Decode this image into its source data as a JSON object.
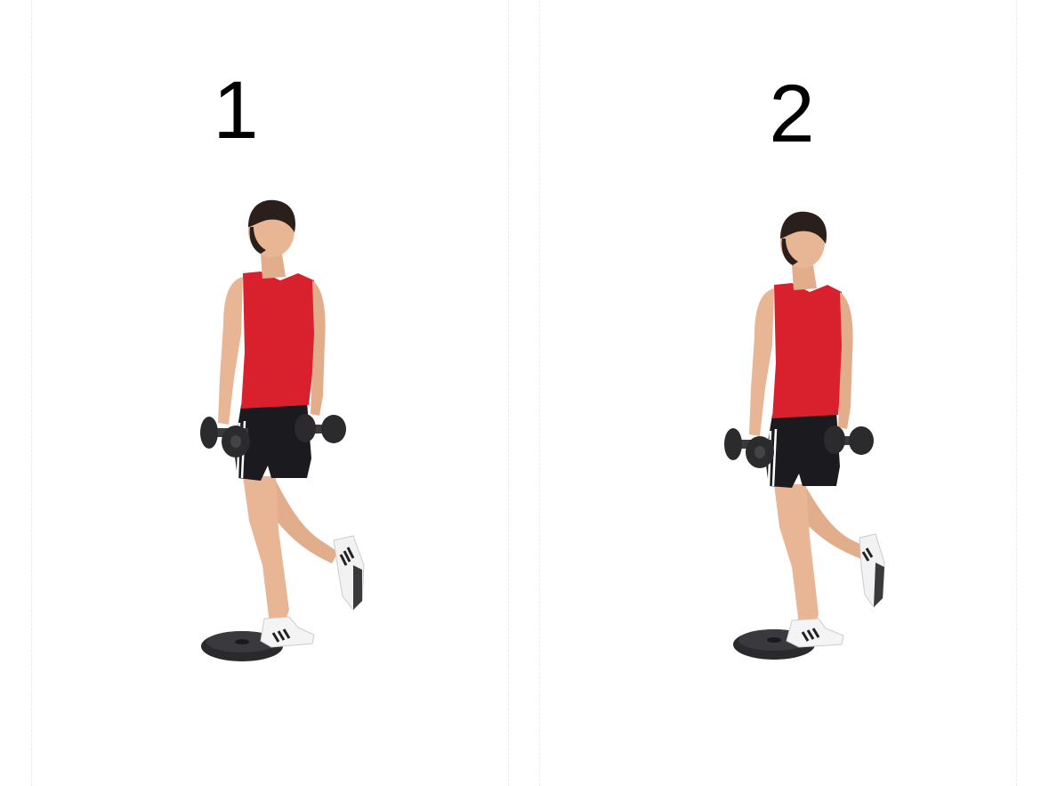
{
  "steps": [
    {
      "number": "1"
    },
    {
      "number": "2"
    }
  ],
  "colors": {
    "background": "#ffffff",
    "tank_top": "#d9212e",
    "shorts": "#1b1b1f",
    "skin": "#e8b695",
    "hair": "#2a1f1a",
    "dumbbell": "#2b2b2e",
    "shoe": "#f4f4f4",
    "weight_plate": "#2a2a2d"
  }
}
